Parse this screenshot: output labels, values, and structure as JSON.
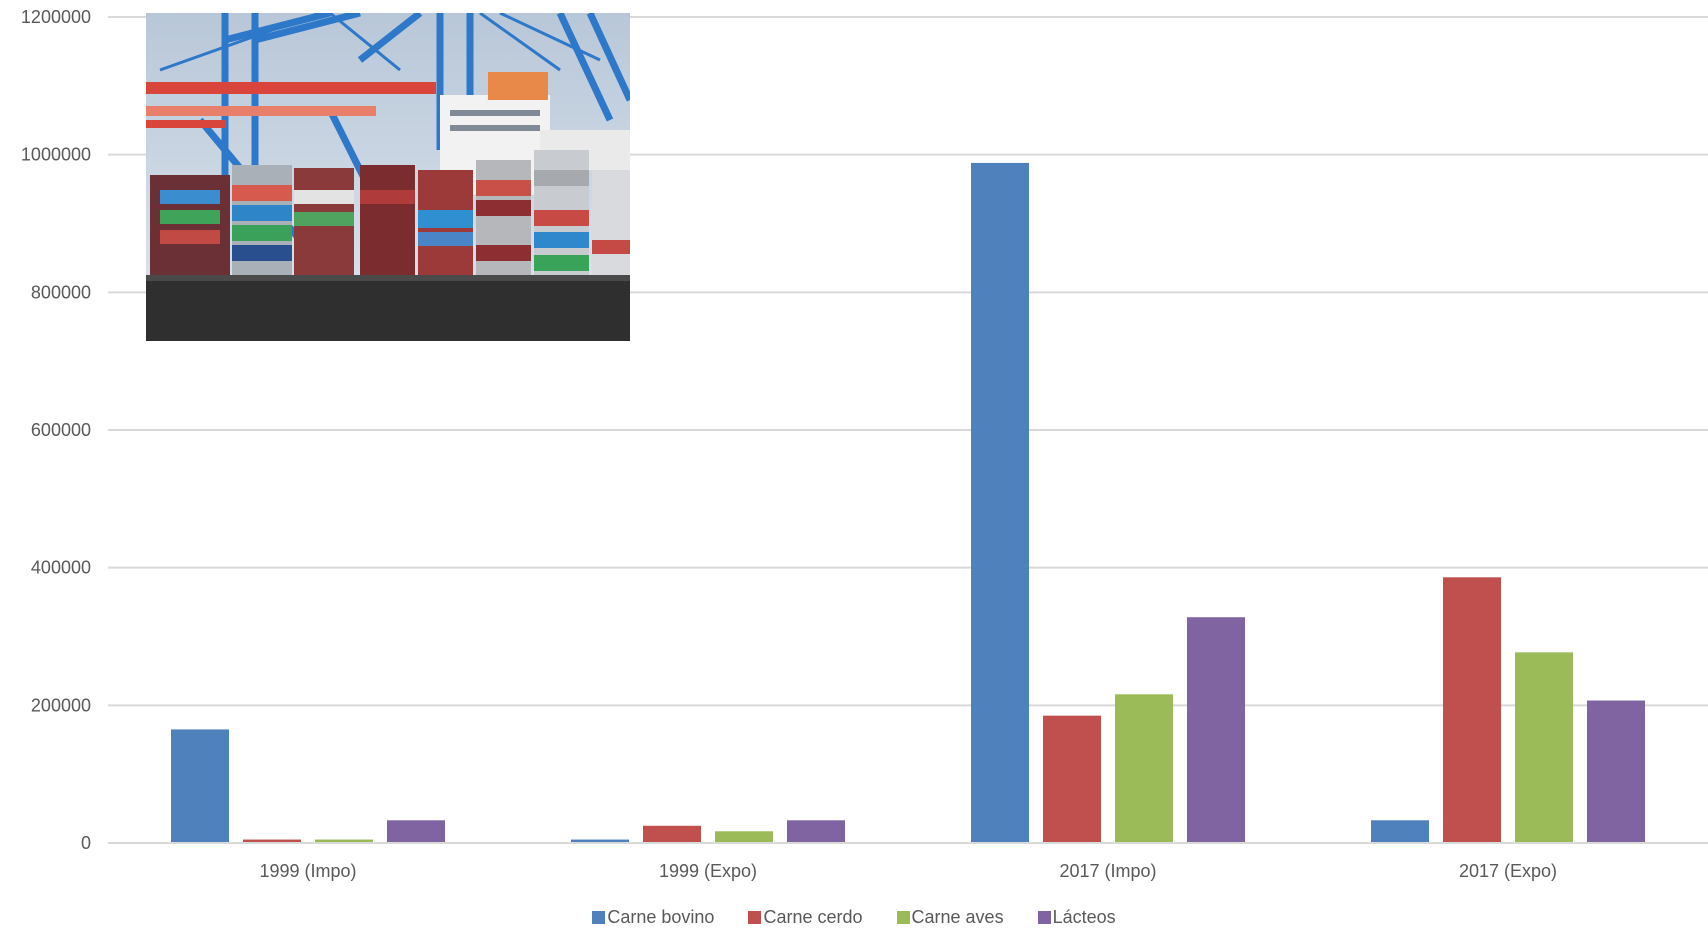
{
  "chart_data": {
    "type": "bar",
    "title": "",
    "xlabel": "",
    "ylabel": "",
    "categories": [
      "1999 (Impo)",
      "1999 (Expo)",
      "2017 (Impo)",
      "2017 (Expo)"
    ],
    "series": [
      {
        "name": "Carne bovino",
        "color": "#4F81BD",
        "values": [
          165000,
          5000,
          988000,
          33000
        ]
      },
      {
        "name": "Carne cerdo",
        "color": "#C0504D",
        "values": [
          5000,
          25000,
          185000,
          386000
        ]
      },
      {
        "name": "Carne aves",
        "color": "#9BBB59",
        "values": [
          5000,
          17000,
          216000,
          277000
        ]
      },
      {
        "name": "Lácteos",
        "color": "#8064A2",
        "values": [
          33000,
          33000,
          328000,
          207000
        ]
      }
    ],
    "ylim": [
      0,
      1200000
    ],
    "yticks": [
      0,
      200000,
      400000,
      600000,
      800000,
      1000000,
      1200000
    ],
    "ytick_labels": [
      "0",
      "200000",
      "400000",
      "600000",
      "800000",
      "1000000",
      "1200000"
    ],
    "grid": true,
    "legend_position": "bottom",
    "inset_image": "container-ship-at-port-photo"
  }
}
